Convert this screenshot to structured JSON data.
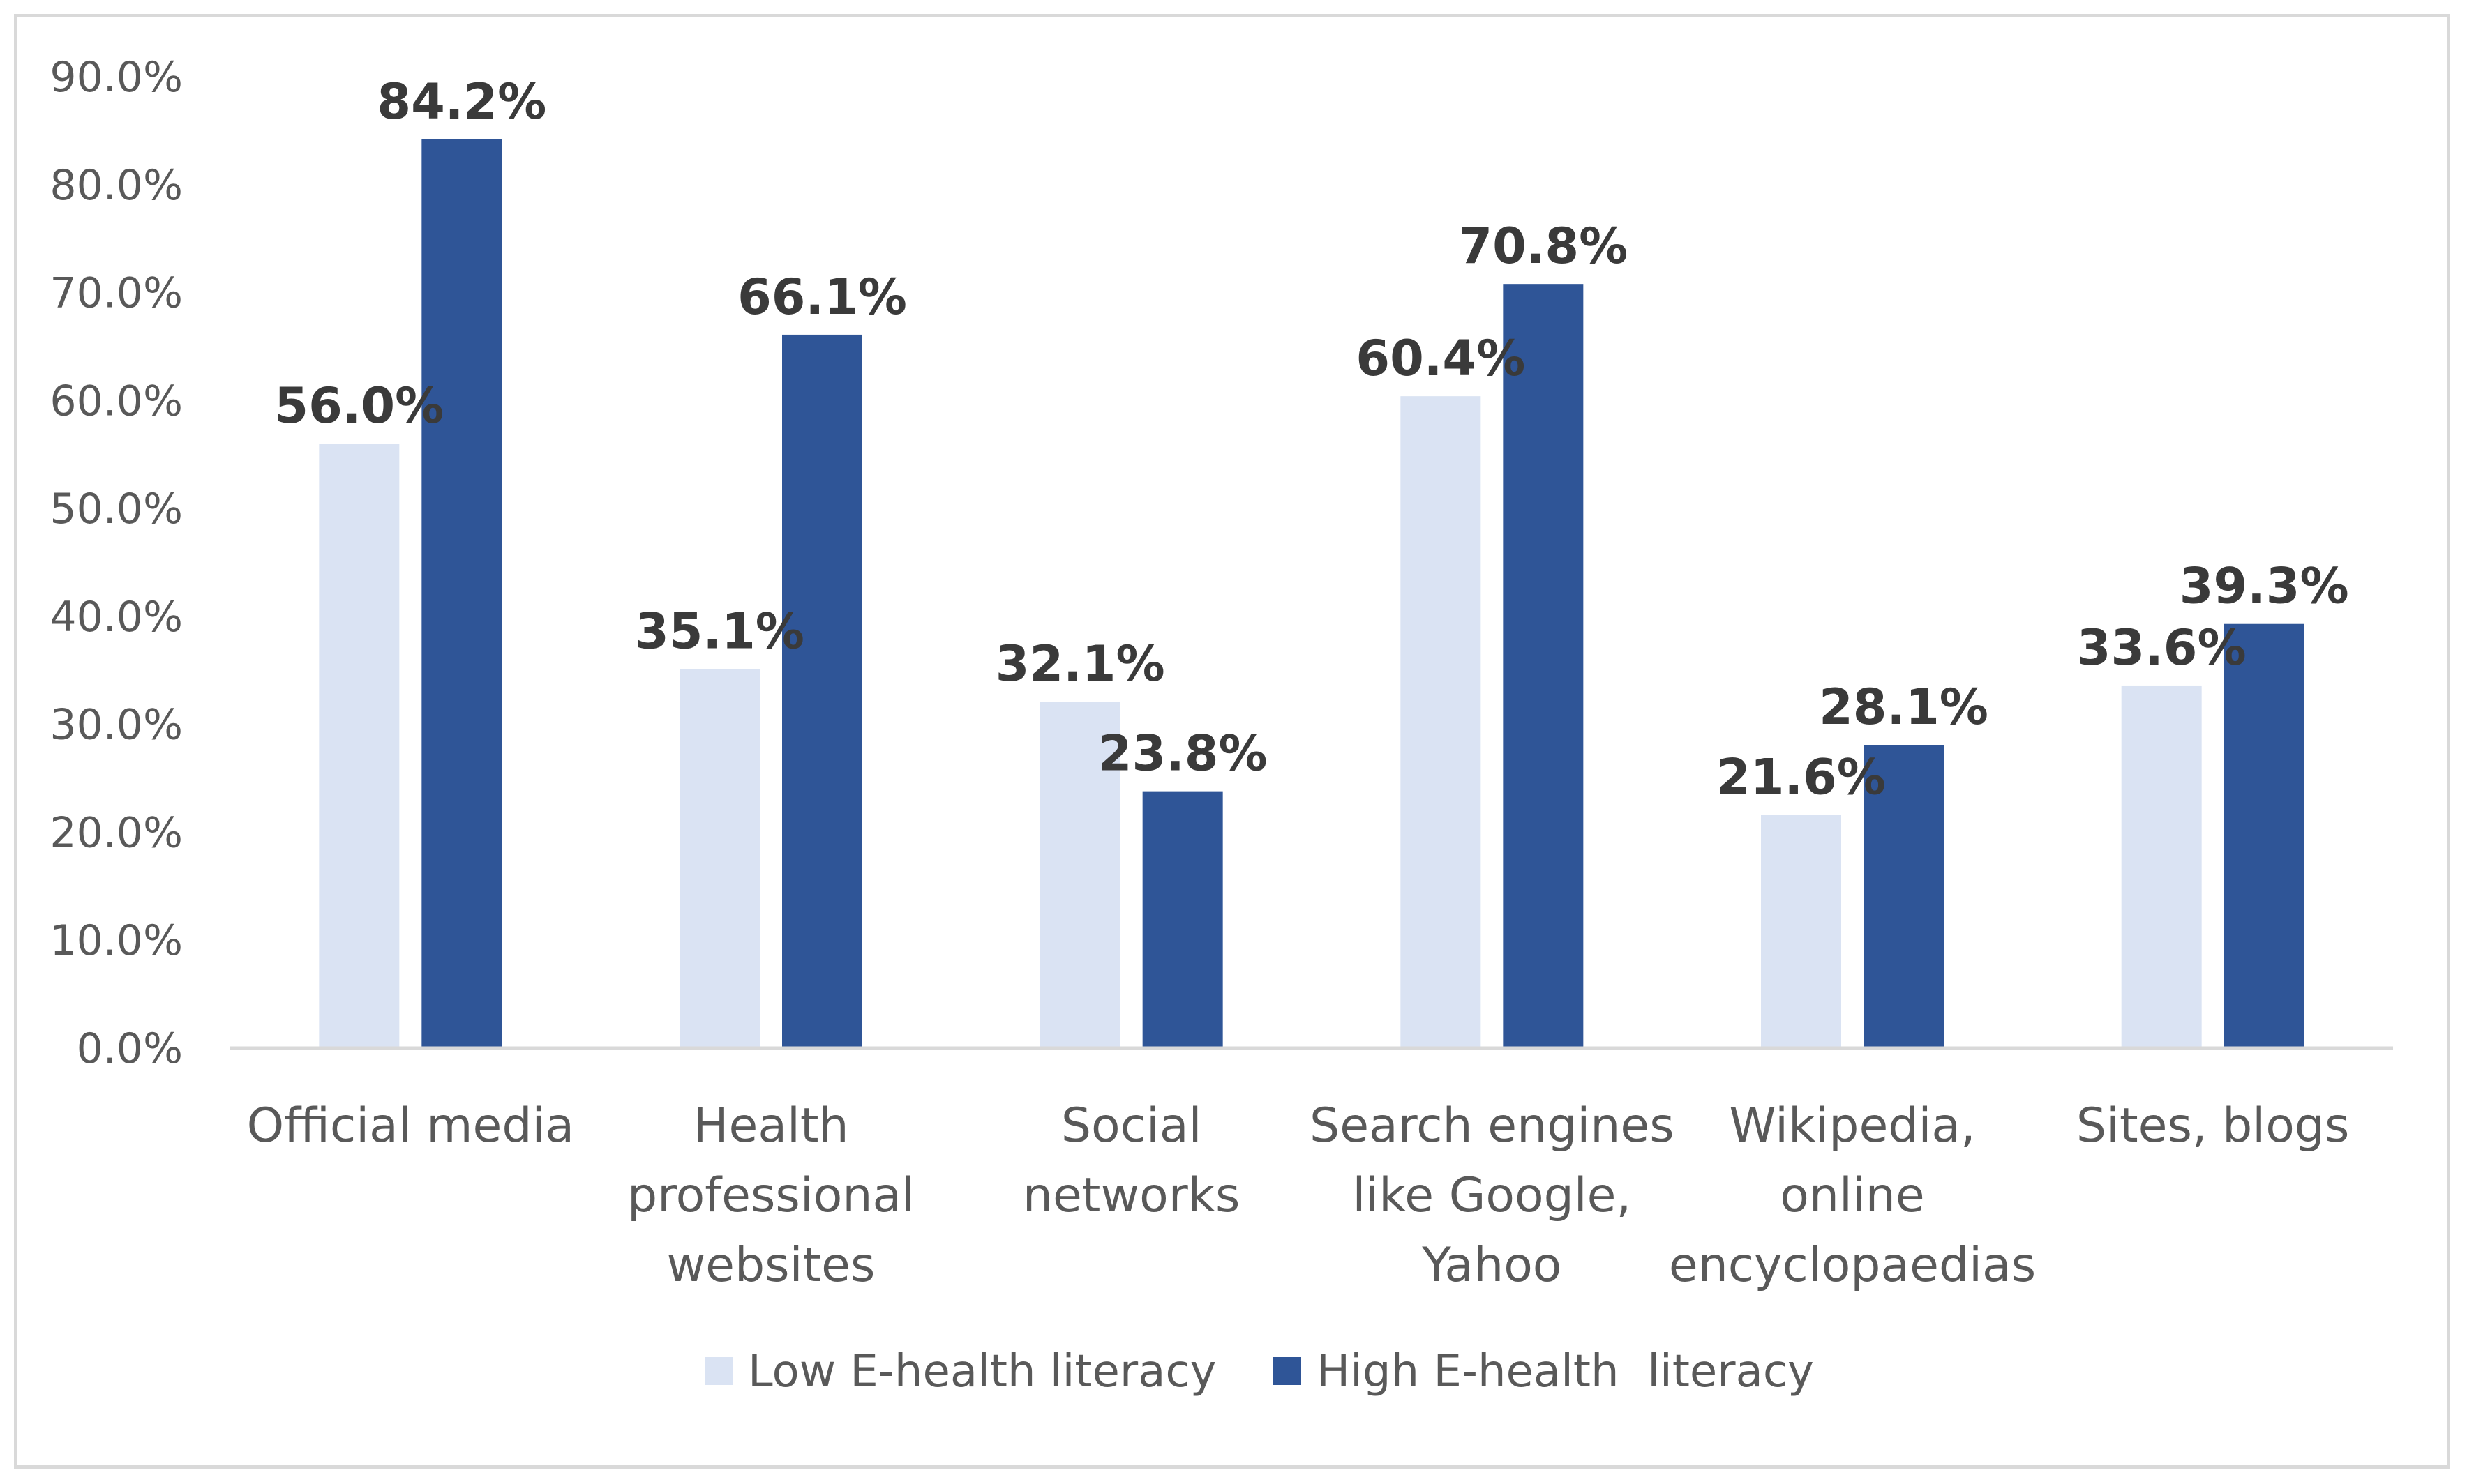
{
  "chart_data": {
    "type": "bar",
    "title": "",
    "xlabel": "",
    "ylabel": "",
    "ylim": [
      0,
      90
    ],
    "yticks": [
      0,
      10,
      20,
      30,
      40,
      50,
      60,
      70,
      80,
      90
    ],
    "ytick_labels": [
      "0.0%",
      "10.0%",
      "20.0%",
      "30.0%",
      "40.0%",
      "50.0%",
      "60.0%",
      "70.0%",
      "80.0%",
      "90.0%"
    ],
    "grid": false,
    "legend_position": "bottom",
    "categories": [
      [
        "Official media"
      ],
      [
        "Health",
        "professional",
        "websites"
      ],
      [
        "Social",
        "networks"
      ],
      [
        "Search engines",
        "like Google,",
        "Yahoo"
      ],
      [
        "Wikipedia,",
        "online",
        "encyclopaedias"
      ],
      [
        "Sites, blogs"
      ]
    ],
    "series": [
      {
        "name": "Low E-health literacy",
        "color": "#dae3f3",
        "values": [
          56.0,
          35.1,
          32.1,
          60.4,
          21.6,
          33.6
        ],
        "labels": [
          "56.0%",
          "35.1%",
          "32.1%",
          "60.4%",
          "21.6%",
          "33.6%"
        ]
      },
      {
        "name": "High E-health  literacy",
        "color": "#2f5597",
        "values": [
          84.2,
          66.1,
          23.8,
          70.8,
          28.1,
          39.3
        ],
        "labels": [
          "84.2%",
          "66.1%",
          "23.8%",
          "70.8%",
          "28.1%",
          "39.3%"
        ]
      }
    ],
    "colors": {
      "axis": "#d9d9d9",
      "text": "#595959",
      "data_label": "#3a3a3a"
    }
  }
}
